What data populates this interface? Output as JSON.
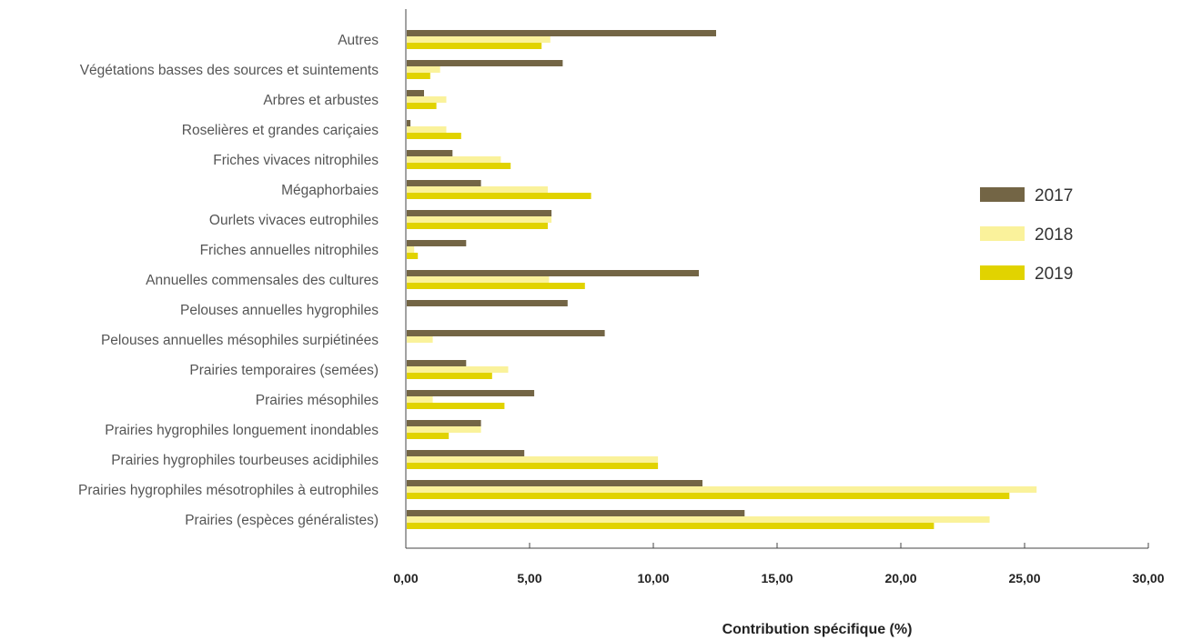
{
  "chart_data": {
    "type": "bar",
    "orientation": "horizontal",
    "title": "",
    "xlabel": "Contribution spécifique (%)",
    "ylabel": "",
    "xlim": [
      0,
      30
    ],
    "x_ticks": [
      "0,00",
      "5,00",
      "10,00",
      "15,00",
      "20,00",
      "25,00",
      "30,00"
    ],
    "legend_position": "right",
    "grid": false,
    "categories": [
      "Autres",
      "Végétations basses des sources et suintements",
      "Arbres et arbustes",
      "Roselières et grandes cariçaies",
      "Friches vivaces nitrophiles",
      "Mégaphorbaies",
      "Ourlets vivaces eutrophiles",
      "Friches annuelles nitrophiles",
      "Annuelles commensales des cultures",
      "Pelouses annuelles hygrophiles",
      "Pelouses annuelles mésophiles surpiétinées",
      "Prairies temporaires (semées)",
      "Prairies mésophiles",
      "Prairies hygrophiles longuement inondables",
      "Prairies hygrophiles tourbeuses acidiphiles",
      "Prairies hygrophiles mésotrophiles à eutrophiles",
      "Prairies (espèces généralistes)"
    ],
    "series": [
      {
        "name": "2017",
        "color": "#736545",
        "values": [
          12.5,
          6.3,
          0.7,
          0.15,
          1.85,
          3.0,
          5.85,
          2.4,
          11.8,
          6.5,
          8.0,
          2.4,
          5.15,
          3.0,
          4.75,
          11.95,
          13.65
        ]
      },
      {
        "name": "2018",
        "color": "#faf29b",
        "values": [
          5.8,
          1.35,
          1.6,
          1.6,
          3.8,
          5.7,
          5.85,
          0.3,
          5.75,
          0.0,
          1.05,
          4.1,
          1.05,
          3.0,
          10.15,
          25.45,
          23.55
        ]
      },
      {
        "name": "2019",
        "color": "#e1d300",
        "values": [
          5.45,
          0.95,
          1.2,
          2.2,
          4.2,
          7.45,
          5.7,
          0.45,
          7.2,
          0.0,
          0.0,
          3.45,
          3.95,
          1.7,
          10.15,
          24.35,
          21.3
        ]
      }
    ]
  }
}
